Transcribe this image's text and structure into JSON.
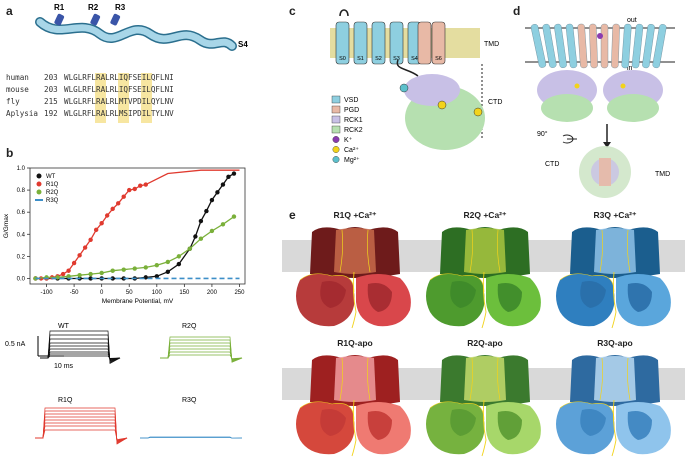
{
  "panels": {
    "a": "a",
    "b": "b",
    "c": "c",
    "d": "d",
    "e": "e"
  },
  "panel_a": {
    "helix_labels": [
      "R1",
      "R2",
      "R3"
    ],
    "s4_label": "S4",
    "alignment": [
      {
        "species": "human",
        "pos": "203",
        "seq": "WLGLRFLRALRLIQFSEILQFLNI"
      },
      {
        "species": "mouse",
        "pos": "203",
        "seq": "WLGLRFLRALRLIQFSEILQFLNI"
      },
      {
        "species": "fly",
        "pos": "215",
        "seq": "WLGLRFLRALRLMTVPDILQYLNV"
      },
      {
        "species": "Aplysia",
        "pos": "192",
        "seq": "WLGLRFLRALRLMSIPDILTYLNV"
      }
    ],
    "highlight_color": "#f7e6a1"
  },
  "chart_data": {
    "type": "line",
    "xlabel": "Membrane Potential, mV",
    "ylabel": "G/Gmax",
    "xlim": [
      -130,
      260
    ],
    "ylim": [
      -0.05,
      1.0
    ],
    "xticks": [
      -100,
      -50,
      0,
      50,
      100,
      150,
      200,
      250
    ],
    "yticks": [
      0.0,
      0.2,
      0.4,
      0.6,
      0.8,
      1.0
    ],
    "xtick_labels": [
      "-100",
      "-50",
      "0",
      "50",
      "100",
      "150",
      "200",
      "250"
    ],
    "ytick_labels": [
      "0.0",
      "0.2",
      "0.4",
      "0.6",
      "0.8",
      "1.0"
    ],
    "legend": {
      "placement": "top-left",
      "entries": [
        "WT",
        "R1Q",
        "R2Q",
        "R3Q"
      ]
    },
    "series": [
      {
        "name": "WT",
        "color": "#111111",
        "x": [
          -120,
          -100,
          -80,
          -60,
          -40,
          -20,
          0,
          20,
          40,
          60,
          80,
          100,
          120,
          140,
          160,
          170,
          180,
          190,
          200,
          210,
          220,
          230,
          240
        ],
        "y": [
          0,
          0,
          0,
          0,
          0,
          0,
          0,
          0,
          0,
          0,
          0.01,
          0.02,
          0.06,
          0.13,
          0.27,
          0.38,
          0.52,
          0.61,
          0.71,
          0.78,
          0.85,
          0.92,
          0.95
        ]
      },
      {
        "name": "R1Q",
        "color": "#e03a2f",
        "x": [
          -120,
          -110,
          -100,
          -90,
          -80,
          -70,
          -60,
          -50,
          -40,
          -30,
          -20,
          -10,
          0,
          10,
          20,
          30,
          40,
          50,
          60,
          70,
          80
        ],
        "y": [
          0,
          0,
          0,
          0.01,
          0.02,
          0.04,
          0.07,
          0.14,
          0.21,
          0.28,
          0.35,
          0.44,
          0.5,
          0.57,
          0.63,
          0.68,
          0.74,
          0.8,
          0.81,
          0.84,
          0.85
        ]
      },
      {
        "name": "R2Q",
        "color": "#7ab03a",
        "x": [
          -120,
          -100,
          -80,
          -60,
          -40,
          -20,
          0,
          20,
          40,
          60,
          80,
          100,
          120,
          140,
          160,
          180,
          200,
          220,
          240
        ],
        "y": [
          0,
          0.01,
          0.01,
          0.02,
          0.03,
          0.04,
          0.05,
          0.07,
          0.08,
          0.09,
          0.1,
          0.12,
          0.15,
          0.2,
          0.27,
          0.36,
          0.43,
          0.49,
          0.56
        ]
      },
      {
        "name": "R3Q",
        "color": "#3d8fc8",
        "x": [
          -120,
          250
        ],
        "y": [
          0,
          0
        ]
      }
    ]
  },
  "traces": {
    "scale_current": "0.5 nA",
    "scale_time": "10 ms",
    "labels": [
      "WT",
      "R2Q",
      "R1Q",
      "R3Q"
    ]
  },
  "panel_c": {
    "segments": [
      "S0",
      "S1",
      "S2",
      "S3",
      "S4",
      "S6"
    ],
    "tmd": "TMD",
    "ctd": "CTD",
    "legend": [
      {
        "label": "VSD",
        "color": "#8ecfe0"
      },
      {
        "label": "PGD",
        "color": "#e8b9a6"
      },
      {
        "label": "RCK1",
        "color": "#c8c0e6"
      },
      {
        "label": "RCK2",
        "color": "#b6e0b0"
      },
      {
        "label": "K⁺",
        "color": "#8a3bb0"
      },
      {
        "label": "Ca²⁺",
        "color": "#f2d31b"
      },
      {
        "label": "Mg²⁺",
        "color": "#5cc0cc"
      }
    ]
  },
  "panel_d": {
    "out": "out",
    "in": "in",
    "rot": "90°",
    "ctd": "CTD",
    "tmd": "TMD"
  },
  "panel_e": {
    "labels": [
      "R1Q +Ca²⁺",
      "R2Q +Ca²⁺",
      "R3Q +Ca²⁺",
      "R1Q-apo",
      "R2Q-apo",
      "R3Q-apo"
    ],
    "palettes": [
      [
        "#6e1b1b",
        "#b73b3b",
        "#d9474b",
        "#a32a30",
        "#c86a4a"
      ],
      [
        "#2d6e23",
        "#4e9b2e",
        "#6cbf3c",
        "#3e8a2a",
        "#a9c640"
      ],
      [
        "#1b5e8e",
        "#2f7fbf",
        "#5aa6dc",
        "#2a6fa8",
        "#8ec2e8"
      ],
      [
        "#9e2020",
        "#d5483c",
        "#ef7a72",
        "#c33a36",
        "#f19da0"
      ],
      [
        "#3b7a2e",
        "#76b23f",
        "#a7d76a",
        "#5a9a33",
        "#c4dc6c"
      ],
      [
        "#2e6aa0",
        "#5ca1d8",
        "#8fc4ec",
        "#3c84c0",
        "#b8d9f2"
      ]
    ]
  }
}
